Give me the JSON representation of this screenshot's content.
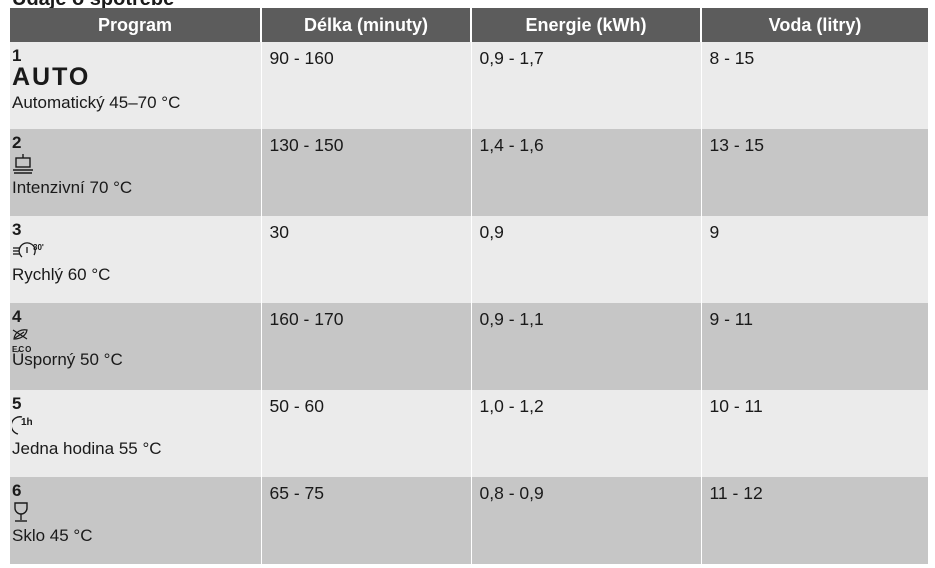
{
  "heading_fragment": "Údaje o spotřebě",
  "headers": [
    "Program",
    "Délka (minuty)",
    "Energie (kWh)",
    "Voda (litry)"
  ],
  "rows": [
    {
      "num": "1",
      "symbol": "AUTO",
      "icon": "auto-text",
      "name": "Automatický 45–70 °C",
      "duration": "90 - 160",
      "energy": "0,9 - 1,7",
      "water": "8 - 15"
    },
    {
      "num": "2",
      "icon": "intensive-pot-icon",
      "name": "Intenzivní 70 °C",
      "duration": "130 - 150",
      "energy": "1,4 - 1,6",
      "water": "13 - 15"
    },
    {
      "num": "3",
      "icon": "quick-30-icon",
      "icon_text": "30'",
      "name": "Rychlý 60 °C",
      "duration": "30",
      "energy": "0,9",
      "water": "9"
    },
    {
      "num": "4",
      "icon": "eco-leaf-icon",
      "icon_text": "ECO",
      "name": "Úsporný 50 °C",
      "duration": "160 - 170",
      "energy": "0,9 - 1,1",
      "water": "9 - 11"
    },
    {
      "num": "5",
      "icon": "one-hour-icon",
      "icon_text": "1h",
      "name": "Jedna hodina 55 °C",
      "duration": "50 - 60",
      "energy": "1,0 - 1,2",
      "water": "10 - 11"
    },
    {
      "num": "6",
      "icon": "glass-icon",
      "name": "Sklo 45 °C",
      "duration": "65 - 75",
      "energy": "0,8 - 0,9",
      "water": "11 - 12"
    }
  ]
}
